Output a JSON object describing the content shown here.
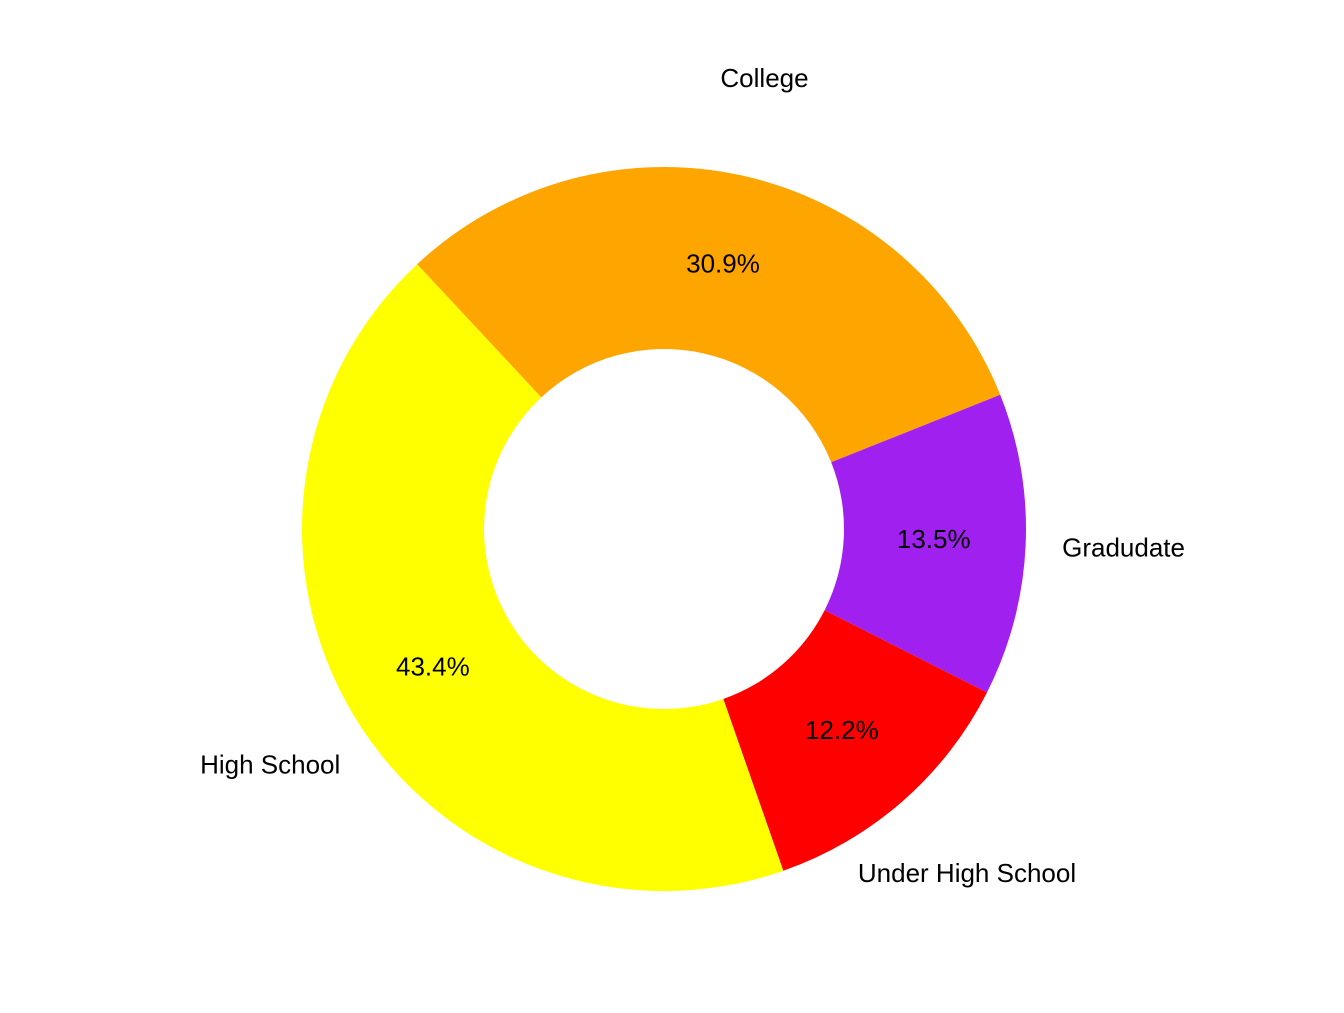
{
  "chart_data": {
    "type": "pie",
    "style": "donut",
    "title": "",
    "slices": [
      {
        "label": "College",
        "value": 30.9,
        "display": "30.9%",
        "color": "#FFA500"
      },
      {
        "label": "Gradudate",
        "value": 13.5,
        "display": "13.5%",
        "color": "#A020F0"
      },
      {
        "label": "Under High School",
        "value": 12.2,
        "display": "12.2%",
        "color": "#FF0000"
      },
      {
        "label": "High School",
        "value": 43.4,
        "display": "43.4%",
        "color": "#FFFF00"
      }
    ]
  }
}
